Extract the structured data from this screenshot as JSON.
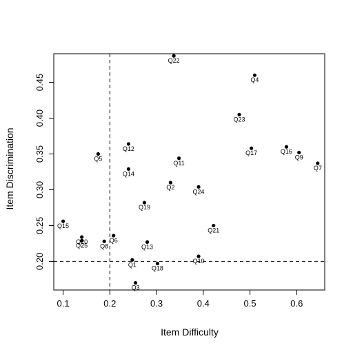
{
  "chart_data": {
    "type": "scatter",
    "title": "",
    "xlabel": "Item Difficulty",
    "ylabel": "Item Discrimination",
    "xlim": [
      0.08,
      0.66
    ],
    "ylim": [
      0.16,
      0.49
    ],
    "xticks": [
      {
        "value": 0.1,
        "label": "0.1"
      },
      {
        "value": 0.2,
        "label": "0.2"
      },
      {
        "value": 0.3,
        "label": "0.3"
      },
      {
        "value": 0.4,
        "label": "0.4"
      },
      {
        "value": 0.5,
        "label": "0.5"
      },
      {
        "value": 0.6,
        "label": "0.6"
      }
    ],
    "yticks": [
      {
        "value": 0.2,
        "label": "0.20"
      },
      {
        "value": 0.25,
        "label": "0.25"
      },
      {
        "value": 0.3,
        "label": "0.30"
      },
      {
        "value": 0.35,
        "label": "0.35"
      },
      {
        "value": 0.4,
        "label": "0.40"
      },
      {
        "value": 0.45,
        "label": "0.45"
      }
    ],
    "reference_lines": {
      "vertical_x": 0.2,
      "horizontal_y": 0.2,
      "style": "dashed"
    },
    "grid": false,
    "points": [
      {
        "label": "Q1",
        "x": 0.248,
        "y": 0.202
      },
      {
        "label": "Q2",
        "x": 0.33,
        "y": 0.31
      },
      {
        "label": "Q3",
        "x": 0.255,
        "y": 0.17
      },
      {
        "label": "Q4",
        "x": 0.51,
        "y": 0.46
      },
      {
        "label": "Q5",
        "x": 0.175,
        "y": 0.35
      },
      {
        "label": "Q6",
        "x": 0.208,
        "y": 0.236
      },
      {
        "label": "Q7",
        "x": 0.645,
        "y": 0.337
      },
      {
        "label": "Q8",
        "x": 0.188,
        "y": 0.228
      },
      {
        "label": "Q9",
        "x": 0.605,
        "y": 0.352
      },
      {
        "label": "Q10",
        "x": 0.39,
        "y": 0.207
      },
      {
        "label": "Q11",
        "x": 0.348,
        "y": 0.344
      },
      {
        "label": "Q12",
        "x": 0.24,
        "y": 0.364
      },
      {
        "label": "Q13",
        "x": 0.28,
        "y": 0.227
      },
      {
        "label": "Q14",
        "x": 0.24,
        "y": 0.329
      },
      {
        "label": "Q15",
        "x": 0.1,
        "y": 0.256
      },
      {
        "label": "Q16",
        "x": 0.578,
        "y": 0.36
      },
      {
        "label": "Q17",
        "x": 0.503,
        "y": 0.358
      },
      {
        "label": "Q18",
        "x": 0.302,
        "y": 0.197
      },
      {
        "label": "Q19",
        "x": 0.274,
        "y": 0.282
      },
      {
        "label": "Q20",
        "x": 0.14,
        "y": 0.234
      },
      {
        "label": "Q21",
        "x": 0.422,
        "y": 0.25
      },
      {
        "label": "Q22",
        "x": 0.337,
        "y": 0.487
      },
      {
        "label": "Q23",
        "x": 0.477,
        "y": 0.405
      },
      {
        "label": "Q24",
        "x": 0.39,
        "y": 0.304
      },
      {
        "label": "Q25",
        "x": 0.14,
        "y": 0.229
      }
    ]
  }
}
